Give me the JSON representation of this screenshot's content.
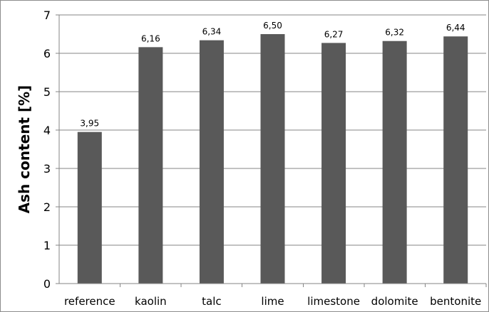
{
  "chart_data": {
    "type": "bar",
    "title": "",
    "xlabel": "",
    "ylabel": "Ash content [%]",
    "categories": [
      "reference",
      "kaolin",
      "talc",
      "lime",
      "limestone",
      "dolomite",
      "bentonite"
    ],
    "values": [
      3.95,
      6.16,
      6.34,
      6.5,
      6.27,
      6.32,
      6.44
    ],
    "data_labels": [
      "3,95",
      "6,16",
      "6,34",
      "6,50",
      "6,27",
      "6,32",
      "6,44"
    ],
    "ylim": [
      0,
      7
    ],
    "yticks": [
      0,
      1,
      2,
      3,
      4,
      5,
      6,
      7
    ],
    "grid": true,
    "legend": "none",
    "bar_color": "#595959"
  }
}
